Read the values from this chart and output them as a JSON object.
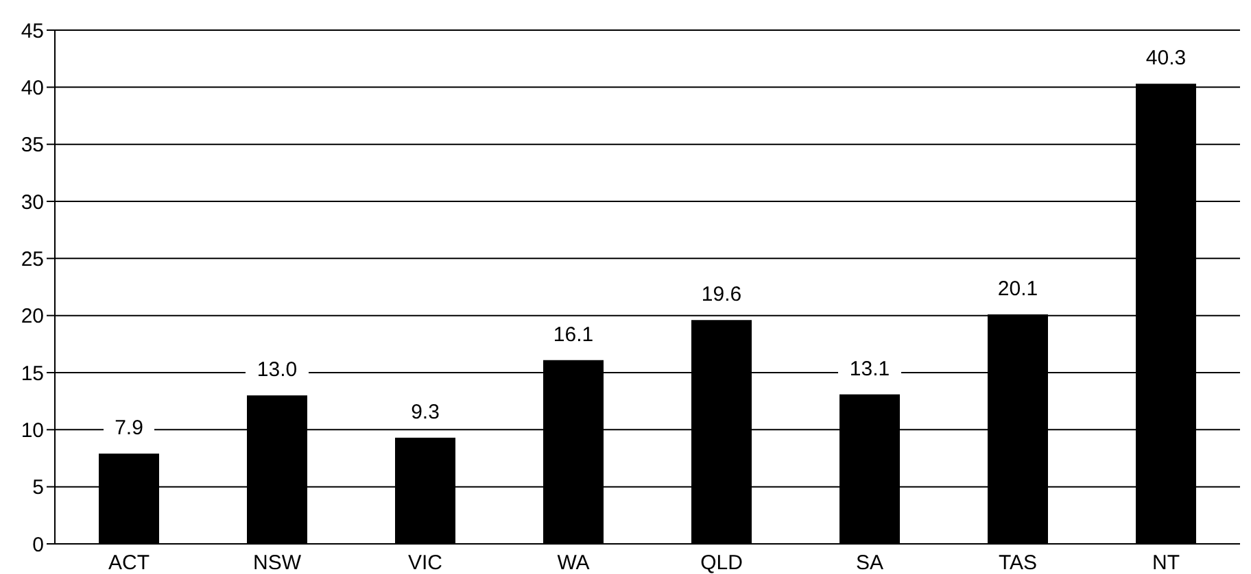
{
  "chart_data": {
    "type": "bar",
    "categories": [
      "ACT",
      "NSW",
      "VIC",
      "WA",
      "QLD",
      "SA",
      "TAS",
      "NT"
    ],
    "values": [
      7.9,
      13.0,
      9.3,
      16.1,
      19.6,
      13.1,
      20.1,
      40.3
    ],
    "value_labels": [
      "7.9",
      "13.0",
      "9.3",
      "16.1",
      "19.6",
      "13.1",
      "20.1",
      "40.3"
    ],
    "color": "#000000",
    "ylim": [
      0,
      45
    ],
    "yticks": [
      0,
      5,
      10,
      15,
      20,
      25,
      30,
      35,
      40,
      45
    ],
    "grid": "y"
  }
}
